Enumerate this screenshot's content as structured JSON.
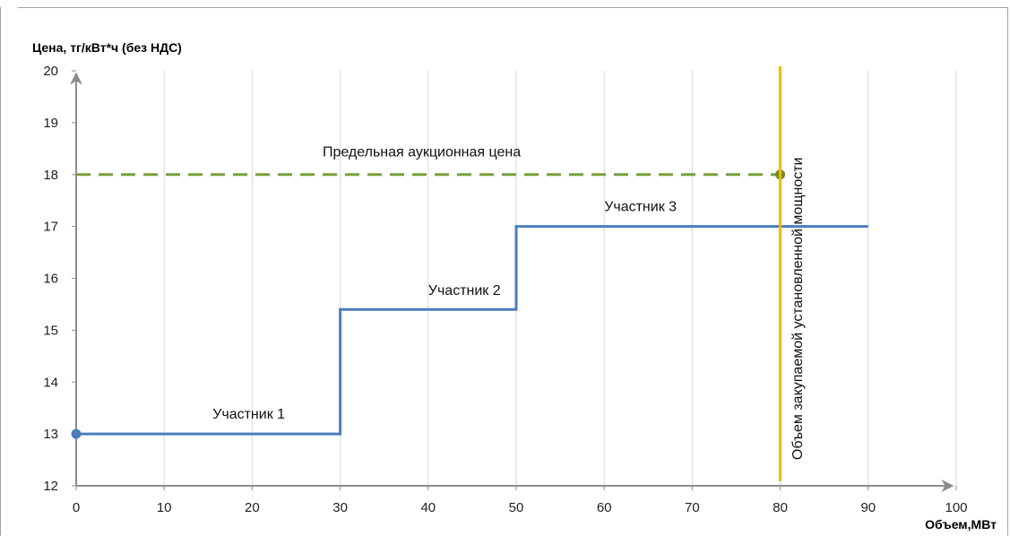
{
  "chart_data": {
    "type": "line",
    "ylabel": "Цена, тг/кВт*ч (без НДС)",
    "xlabel": "Объем,МВт",
    "xlim": [
      0,
      100
    ],
    "ylim": [
      12,
      20
    ],
    "x_ticks": [
      "0",
      "10",
      "20",
      "30",
      "40",
      "50",
      "60",
      "70",
      "80",
      "90",
      "100"
    ],
    "y_ticks": [
      "12",
      "13",
      "14",
      "15",
      "16",
      "17",
      "18",
      "19",
      "20"
    ],
    "grid": {
      "horizontal": false,
      "vertical": true
    },
    "series": [
      {
        "name": "",
        "kind": "step",
        "color": "#4a7ebb",
        "points": [
          [
            0,
            13
          ],
          [
            30,
            13
          ],
          [
            30,
            15.4
          ],
          [
            50,
            15.4
          ],
          [
            50,
            17
          ],
          [
            90,
            17
          ]
        ],
        "start_marker": true
      },
      {
        "name": "",
        "kind": "dashed",
        "color": "#77a03c",
        "points": [
          [
            0,
            18
          ],
          [
            80,
            18
          ]
        ],
        "end_marker": true
      }
    ],
    "vertical_line": {
      "x": 80,
      "color": "#f5b800"
    },
    "annotations": [
      {
        "text": "Предельная аукционная цена",
        "x": 28,
        "y": 18.35
      },
      {
        "text": "Участник 1",
        "x": 15.5,
        "y": 13.3
      },
      {
        "text": "Участник 2",
        "x": 40,
        "y": 15.68
      },
      {
        "text": "Участник 3",
        "x": 60,
        "y": 17.3
      },
      {
        "text": "Объем закупаемой установленной мощности",
        "x": 82.5,
        "y": 12.5,
        "rotated": true
      }
    ]
  }
}
